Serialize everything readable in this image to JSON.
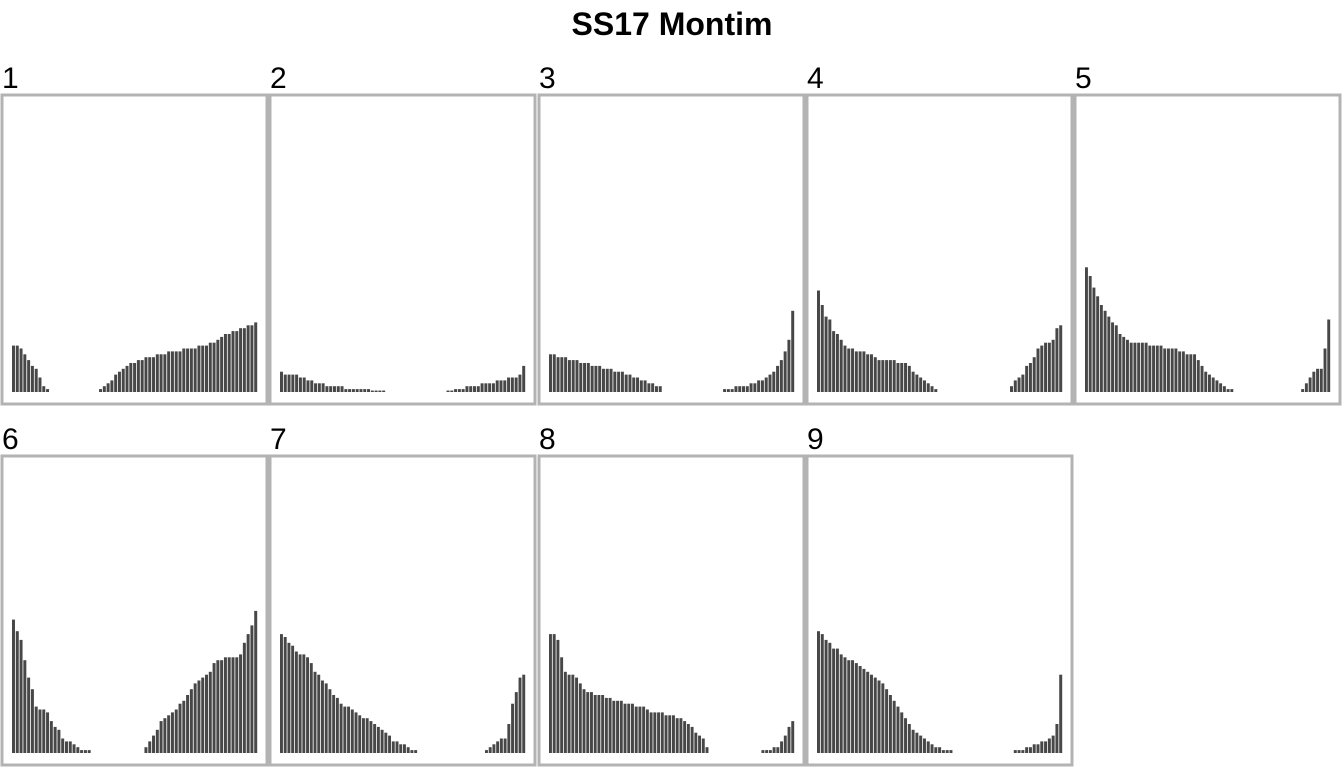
{
  "chart_data": {
    "type": "bar",
    "title": "SS17 Montim",
    "xlabel": "",
    "ylabel": "",
    "ylim": [
      0,
      1
    ],
    "grid": false,
    "legend": "none",
    "colors": {
      "bar": "#474747",
      "frame": "#b3b3b3",
      "background": "#ffffff"
    },
    "panels": [
      {
        "label": "1",
        "values": [
          0.16,
          0.16,
          0.15,
          0.13,
          0.11,
          0.09,
          0.08,
          0.05,
          0.02,
          0.01,
          0,
          0,
          0,
          0,
          0,
          0,
          0,
          0,
          0,
          0,
          0,
          0,
          0,
          0.01,
          0.02,
          0.03,
          0.04,
          0.06,
          0.07,
          0.08,
          0.09,
          0.1,
          0.1,
          0.11,
          0.11,
          0.12,
          0.12,
          0.12,
          0.13,
          0.13,
          0.13,
          0.14,
          0.14,
          0.14,
          0.14,
          0.15,
          0.15,
          0.15,
          0.15,
          0.16,
          0.16,
          0.16,
          0.17,
          0.17,
          0.18,
          0.19,
          0.2,
          0.2,
          0.21,
          0.21,
          0.22,
          0.22,
          0.23,
          0.23,
          0.24
        ]
      },
      {
        "label": "2",
        "values": [
          0.07,
          0.06,
          0.06,
          0.06,
          0.06,
          0.05,
          0.05,
          0.04,
          0.04,
          0.03,
          0.03,
          0.03,
          0.02,
          0.02,
          0.02,
          0.02,
          0.02,
          0.01,
          0.01,
          0.01,
          0.01,
          0.01,
          0.01,
          0.01,
          0.005,
          0.005,
          0.005,
          0.005,
          0,
          0,
          0,
          0,
          0,
          0,
          0,
          0,
          0,
          0,
          0,
          0,
          0,
          0,
          0,
          0,
          0.005,
          0.005,
          0.01,
          0.01,
          0.01,
          0.02,
          0.02,
          0.02,
          0.02,
          0.03,
          0.03,
          0.03,
          0.03,
          0.04,
          0.04,
          0.04,
          0.05,
          0.05,
          0.05,
          0.06,
          0.09
        ]
      },
      {
        "label": "3",
        "values": [
          0.13,
          0.13,
          0.12,
          0.12,
          0.12,
          0.11,
          0.11,
          0.11,
          0.1,
          0.1,
          0.1,
          0.09,
          0.09,
          0.09,
          0.08,
          0.08,
          0.08,
          0.07,
          0.07,
          0.07,
          0.06,
          0.06,
          0.05,
          0.05,
          0.04,
          0.04,
          0.03,
          0.03,
          0.02,
          0.02,
          0,
          0,
          0,
          0,
          0,
          0,
          0,
          0,
          0,
          0,
          0,
          0,
          0,
          0,
          0,
          0,
          0.01,
          0.01,
          0.01,
          0.02,
          0.02,
          0.02,
          0.02,
          0.03,
          0.03,
          0.04,
          0.04,
          0.05,
          0.06,
          0.07,
          0.09,
          0.11,
          0.14,
          0.18,
          0.28
        ]
      },
      {
        "label": "4",
        "values": [
          0.35,
          0.3,
          0.26,
          0.25,
          0.21,
          0.2,
          0.18,
          0.16,
          0.15,
          0.15,
          0.14,
          0.14,
          0.14,
          0.13,
          0.13,
          0.12,
          0.11,
          0.11,
          0.11,
          0.11,
          0.11,
          0.1,
          0.1,
          0.1,
          0.09,
          0.07,
          0.06,
          0.05,
          0.04,
          0.03,
          0.02,
          0.01,
          0,
          0,
          0,
          0,
          0,
          0,
          0,
          0,
          0,
          0,
          0,
          0,
          0,
          0,
          0,
          0,
          0,
          0,
          0,
          0.02,
          0.04,
          0.05,
          0.06,
          0.09,
          0.1,
          0.12,
          0.15,
          0.16,
          0.17,
          0.17,
          0.18,
          0.22,
          0.23
        ]
      },
      {
        "label": "5",
        "values": [
          0.43,
          0.4,
          0.36,
          0.33,
          0.3,
          0.28,
          0.26,
          0.24,
          0.23,
          0.2,
          0.19,
          0.18,
          0.17,
          0.17,
          0.17,
          0.17,
          0.17,
          0.16,
          0.16,
          0.16,
          0.16,
          0.15,
          0.15,
          0.15,
          0.15,
          0.14,
          0.14,
          0.13,
          0.13,
          0.13,
          0.11,
          0.09,
          0.07,
          0.06,
          0.05,
          0.04,
          0.03,
          0.02,
          0.01,
          0.01,
          0,
          0,
          0,
          0,
          0,
          0,
          0,
          0,
          0,
          0,
          0,
          0,
          0,
          0,
          0,
          0,
          0,
          0,
          0.01,
          0.03,
          0.05,
          0.07,
          0.08,
          0.08,
          0.15,
          0.25
        ]
      },
      {
        "label": "6",
        "values": [
          0.46,
          0.42,
          0.39,
          0.32,
          0.26,
          0.22,
          0.16,
          0.15,
          0.15,
          0.14,
          0.11,
          0.09,
          0.08,
          0.05,
          0.04,
          0.04,
          0.03,
          0.02,
          0.01,
          0.01,
          0.01,
          0,
          0,
          0,
          0,
          0,
          0,
          0,
          0,
          0,
          0,
          0,
          0,
          0,
          0,
          0.02,
          0.04,
          0.06,
          0.08,
          0.11,
          0.12,
          0.13,
          0.14,
          0.15,
          0.17,
          0.18,
          0.2,
          0.22,
          0.24,
          0.25,
          0.26,
          0.27,
          0.28,
          0.31,
          0.32,
          0.32,
          0.33,
          0.33,
          0.33,
          0.33,
          0.34,
          0.38,
          0.41,
          0.44,
          0.49
        ]
      },
      {
        "label": "7",
        "values": [
          0.41,
          0.4,
          0.38,
          0.37,
          0.35,
          0.34,
          0.34,
          0.33,
          0.31,
          0.28,
          0.27,
          0.25,
          0.24,
          0.22,
          0.2,
          0.19,
          0.17,
          0.16,
          0.16,
          0.15,
          0.14,
          0.13,
          0.12,
          0.12,
          0.11,
          0.1,
          0.09,
          0.08,
          0.07,
          0.06,
          0.04,
          0.04,
          0.03,
          0.03,
          0.02,
          0.01,
          0.01,
          0,
          0,
          0,
          0,
          0,
          0,
          0,
          0,
          0,
          0,
          0,
          0,
          0,
          0,
          0,
          0,
          0,
          0,
          0.01,
          0.02,
          0.03,
          0.04,
          0.05,
          0.05,
          0.1,
          0.17,
          0.21,
          0.26,
          0.27
        ]
      },
      {
        "label": "8",
        "values": [
          0.41,
          0.41,
          0.39,
          0.33,
          0.28,
          0.27,
          0.27,
          0.26,
          0.24,
          0.22,
          0.21,
          0.21,
          0.2,
          0.2,
          0.2,
          0.19,
          0.19,
          0.18,
          0.18,
          0.18,
          0.17,
          0.17,
          0.17,
          0.16,
          0.16,
          0.16,
          0.15,
          0.14,
          0.14,
          0.14,
          0.14,
          0.13,
          0.13,
          0.13,
          0.12,
          0.12,
          0.11,
          0.1,
          0.09,
          0.07,
          0.06,
          0.05,
          0.02,
          0,
          0,
          0,
          0,
          0,
          0,
          0,
          0,
          0,
          0,
          0,
          0,
          0,
          0,
          0.01,
          0.01,
          0.01,
          0.02,
          0.02,
          0.04,
          0.06,
          0.09,
          0.11
        ]
      },
      {
        "label": "9",
        "values": [
          0.42,
          0.41,
          0.39,
          0.38,
          0.36,
          0.36,
          0.34,
          0.33,
          0.32,
          0.32,
          0.31,
          0.3,
          0.29,
          0.28,
          0.27,
          0.26,
          0.25,
          0.24,
          0.22,
          0.2,
          0.18,
          0.16,
          0.14,
          0.12,
          0.1,
          0.08,
          0.07,
          0.06,
          0.05,
          0.04,
          0.03,
          0.02,
          0.02,
          0.01,
          0.01,
          0.01,
          0,
          0,
          0,
          0,
          0,
          0,
          0,
          0,
          0,
          0,
          0,
          0,
          0,
          0,
          0,
          0,
          0.01,
          0.01,
          0.01,
          0.02,
          0.02,
          0.03,
          0.03,
          0.04,
          0.04,
          0.05,
          0.06,
          0.1,
          0.27
        ]
      }
    ]
  }
}
